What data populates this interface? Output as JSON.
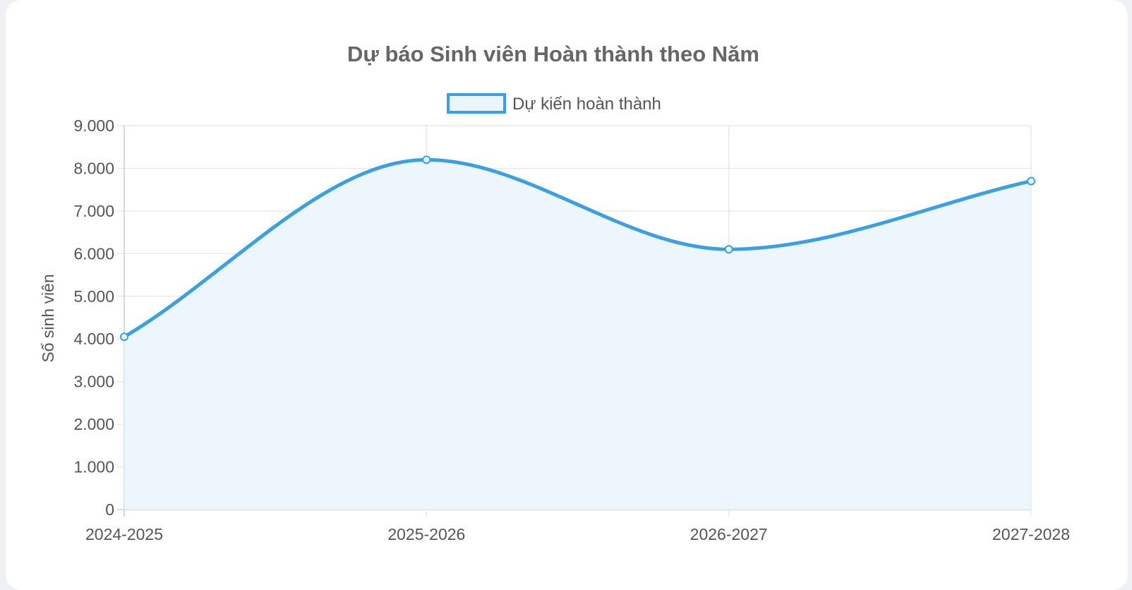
{
  "chart_data": {
    "type": "line",
    "title": "Dự báo Sinh viên Hoàn thành theo Năm",
    "categories": [
      "2024-2025",
      "2025-2026",
      "2026-2027",
      "2027-2028"
    ],
    "series": [
      {
        "name": "Dự kiến hoàn thành",
        "values": [
          4050,
          8200,
          6100,
          7700
        ],
        "color": "#3b9fe4",
        "fill": "#ebf5fc"
      }
    ],
    "ylabel": "Số sinh viên",
    "xlabel": "",
    "ylim": [
      0,
      9000
    ],
    "yticks": [
      "0",
      "1.000",
      "2.000",
      "3.000",
      "4.000",
      "5.000",
      "6.000",
      "7.000",
      "8.000",
      "9.000"
    ],
    "grid": true,
    "legend": "top-center",
    "smooth": true
  }
}
